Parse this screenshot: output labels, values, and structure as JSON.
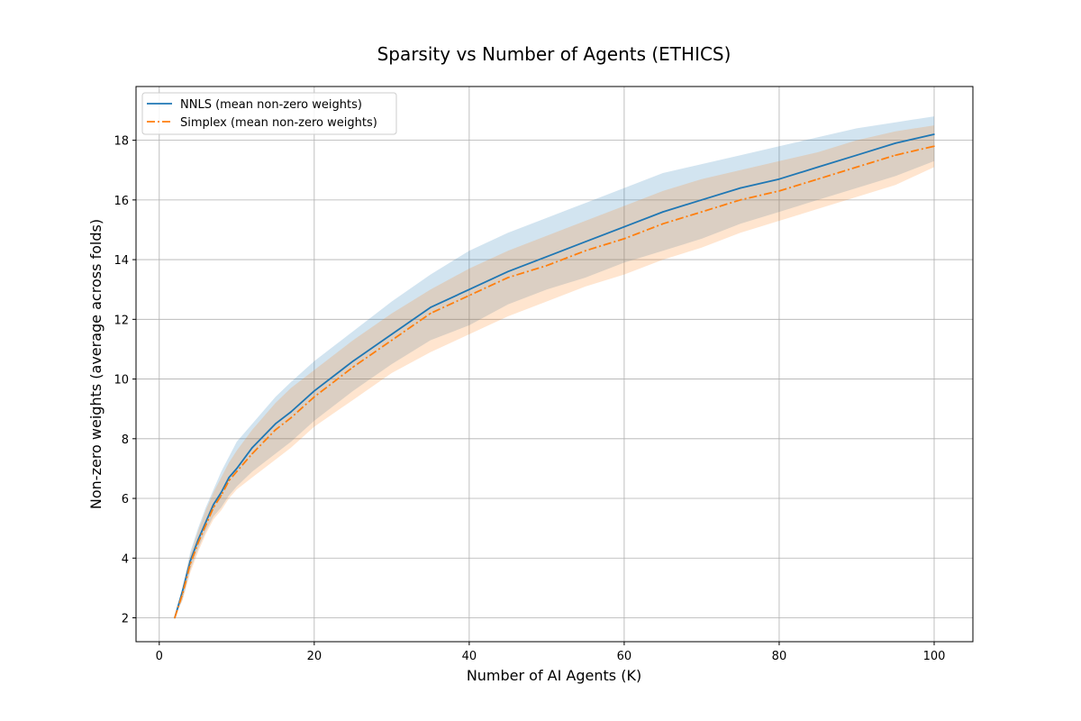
{
  "chart_data": {
    "type": "line",
    "title": "Sparsity vs Number of Agents (ETHICS)",
    "xlabel": "Number of AI Agents (K)",
    "ylabel": "Non-zero weights (average across folds)",
    "xlim": [
      -3,
      105
    ],
    "ylim": [
      1.2,
      19.8
    ],
    "xticks": [
      0,
      20,
      40,
      60,
      80,
      100
    ],
    "yticks": [
      2,
      4,
      6,
      8,
      10,
      12,
      14,
      16,
      18
    ],
    "grid": true,
    "legend_position": "top-left",
    "x": [
      2,
      3,
      4,
      5,
      6,
      7,
      8,
      9,
      10,
      12,
      15,
      17,
      20,
      25,
      30,
      35,
      40,
      45,
      50,
      55,
      60,
      65,
      70,
      75,
      80,
      85,
      90,
      95,
      100
    ],
    "series": [
      {
        "name": "NNLS (mean non-zero weights)",
        "color": "#1f77b4",
        "line_style": "solid",
        "values": [
          2.0,
          2.9,
          3.9,
          4.6,
          5.2,
          5.8,
          6.2,
          6.7,
          7.0,
          7.7,
          8.5,
          8.9,
          9.6,
          10.6,
          11.5,
          12.4,
          13.0,
          13.6,
          14.1,
          14.6,
          15.1,
          15.6,
          16.0,
          16.4,
          16.7,
          17.1,
          17.5,
          17.9,
          18.2
        ],
        "band_lower": [
          2.0,
          2.6,
          3.6,
          4.3,
          4.9,
          5.4,
          5.7,
          6.1,
          6.4,
          6.9,
          7.5,
          7.9,
          8.6,
          9.6,
          10.5,
          11.3,
          11.8,
          12.5,
          13.0,
          13.4,
          13.9,
          14.3,
          14.7,
          15.2,
          15.6,
          16.0,
          16.4,
          16.8,
          17.3
        ],
        "band_upper": [
          2.0,
          3.0,
          4.2,
          5.0,
          5.7,
          6.3,
          6.9,
          7.4,
          7.9,
          8.5,
          9.4,
          9.9,
          10.6,
          11.6,
          12.6,
          13.5,
          14.3,
          14.9,
          15.4,
          15.9,
          16.4,
          16.9,
          17.2,
          17.5,
          17.8,
          18.1,
          18.4,
          18.6,
          18.8
        ]
      },
      {
        "name": "Simplex (mean non-zero weights)",
        "color": "#ff7f0e",
        "line_style": "dashdot",
        "values": [
          2.0,
          2.8,
          3.8,
          4.5,
          5.1,
          5.7,
          6.1,
          6.6,
          6.9,
          7.5,
          8.3,
          8.7,
          9.4,
          10.4,
          11.3,
          12.2,
          12.8,
          13.4,
          13.8,
          14.3,
          14.7,
          15.2,
          15.6,
          16.0,
          16.3,
          16.7,
          17.1,
          17.5,
          17.8
        ],
        "band_lower": [
          2.0,
          2.6,
          3.5,
          4.2,
          4.8,
          5.3,
          5.6,
          6.0,
          6.3,
          6.7,
          7.3,
          7.7,
          8.4,
          9.3,
          10.2,
          10.9,
          11.5,
          12.1,
          12.6,
          13.1,
          13.5,
          14.0,
          14.4,
          14.9,
          15.3,
          15.7,
          16.1,
          16.5,
          17.1
        ],
        "band_upper": [
          2.0,
          3.0,
          4.1,
          4.9,
          5.6,
          6.2,
          6.7,
          7.2,
          7.6,
          8.3,
          9.2,
          9.7,
          10.3,
          11.3,
          12.2,
          13.0,
          13.7,
          14.3,
          14.8,
          15.3,
          15.8,
          16.3,
          16.7,
          17.0,
          17.3,
          17.6,
          18.0,
          18.3,
          18.5
        ]
      }
    ]
  }
}
